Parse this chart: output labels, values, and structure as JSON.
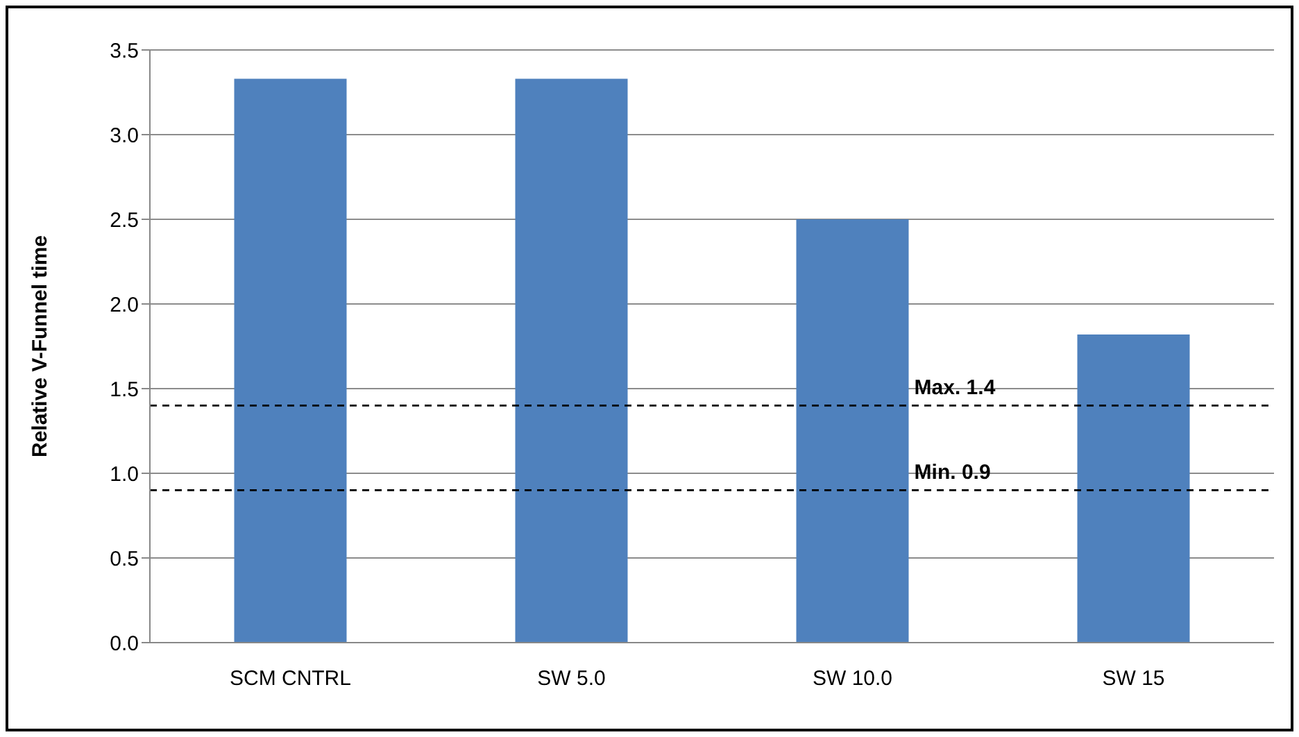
{
  "chart_data": {
    "type": "bar",
    "ylabel": "Relative V-Funnel time",
    "categories": [
      "SCM CNTRL",
      "SW 5.0",
      "SW 10.0",
      "SW 15"
    ],
    "values": [
      3.33,
      3.33,
      2.5,
      1.82
    ],
    "color": "#4f81bd",
    "ylim": [
      0,
      3.5
    ],
    "yticks": [
      {
        "value": 0,
        "label": "0.0"
      },
      0.5,
      {
        "value": 1,
        "label": "1.0"
      },
      1.5,
      {
        "value": 2,
        "label": "2.0"
      },
      2.5,
      {
        "value": 3,
        "label": "3.0"
      },
      3.5
    ],
    "grid": "y",
    "legend": false,
    "ref_lines": [
      {
        "axis": "y",
        "value": 1.4,
        "label": "Max. 1.4",
        "color": "#000000",
        "line_style": "dashed"
      },
      {
        "axis": "y",
        "value": 0.9,
        "label": "Min. 0.9",
        "color": "#000000",
        "line_style": "dashed"
      }
    ]
  }
}
